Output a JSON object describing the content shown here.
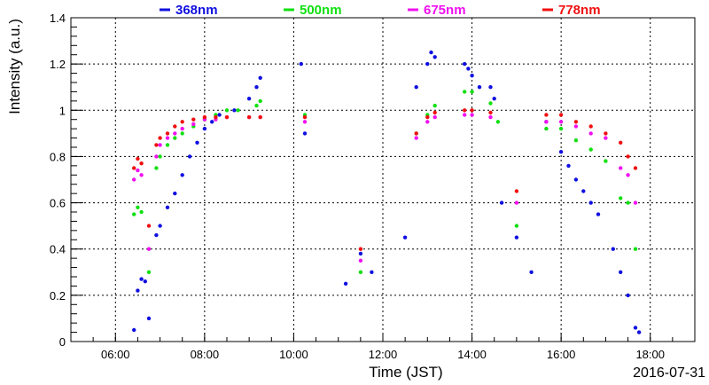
{
  "chart_data": {
    "type": "scatter",
    "title": "",
    "xlabel": "Time (JST)",
    "ylabel": "Intensity (a.u.)",
    "date": "2016-07-31",
    "xlim": [
      "05:00",
      "19:00"
    ],
    "ylim": [
      0,
      1.4
    ],
    "x_ticks": [
      "06:00",
      "08:00",
      "10:00",
      "12:00",
      "14:00",
      "16:00",
      "18:00"
    ],
    "y_ticks": [
      "0",
      "0.2",
      "0.4",
      "0.6",
      "0.8",
      "1",
      "1.2",
      "1.4"
    ],
    "grid": true,
    "legend_position": "top",
    "series": [
      {
        "name": "368nm",
        "color": "#1010e0",
        "points": [
          [
            "06:25",
            0.05
          ],
          [
            "06:30",
            0.22
          ],
          [
            "06:35",
            0.27
          ],
          [
            "06:40",
            0.26
          ],
          [
            "06:45",
            0.1
          ],
          [
            "06:55",
            0.46
          ],
          [
            "07:00",
            0.5
          ],
          [
            "07:10",
            0.58
          ],
          [
            "07:20",
            0.64
          ],
          [
            "07:30",
            0.72
          ],
          [
            "07:40",
            0.8
          ],
          [
            "07:50",
            0.86
          ],
          [
            "08:00",
            0.92
          ],
          [
            "08:10",
            0.95
          ],
          [
            "08:20",
            0.98
          ],
          [
            "08:40",
            1.0
          ],
          [
            "09:00",
            1.05
          ],
          [
            "09:10",
            1.1
          ],
          [
            "09:15",
            1.14
          ],
          [
            "10:10",
            1.2
          ],
          [
            "10:15",
            0.9
          ],
          [
            "11:10",
            0.25
          ],
          [
            "11:30",
            0.38
          ],
          [
            "11:45",
            0.3
          ],
          [
            "12:30",
            0.45
          ],
          [
            "12:45",
            1.1
          ],
          [
            "13:00",
            1.2
          ],
          [
            "13:05",
            1.25
          ],
          [
            "13:10",
            1.23
          ],
          [
            "13:50",
            1.2
          ],
          [
            "13:55",
            1.18
          ],
          [
            "14:00",
            1.15
          ],
          [
            "14:10",
            1.1
          ],
          [
            "14:25",
            1.1
          ],
          [
            "14:30",
            1.05
          ],
          [
            "14:40",
            0.6
          ],
          [
            "15:00",
            0.45
          ],
          [
            "15:20",
            0.3
          ],
          [
            "15:40",
            0.95
          ],
          [
            "16:00",
            0.82
          ],
          [
            "16:10",
            0.76
          ],
          [
            "16:20",
            0.7
          ],
          [
            "16:30",
            0.65
          ],
          [
            "16:40",
            0.6
          ],
          [
            "16:50",
            0.55
          ],
          [
            "17:10",
            0.4
          ],
          [
            "17:20",
            0.3
          ],
          [
            "17:30",
            0.2
          ],
          [
            "17:40",
            0.06
          ],
          [
            "17:45",
            0.04
          ]
        ]
      },
      {
        "name": "500nm",
        "color": "#10e010",
        "points": [
          [
            "06:25",
            0.55
          ],
          [
            "06:30",
            0.58
          ],
          [
            "06:35",
            0.56
          ],
          [
            "06:45",
            0.3
          ],
          [
            "06:55",
            0.75
          ],
          [
            "07:00",
            0.8
          ],
          [
            "07:10",
            0.85
          ],
          [
            "07:20",
            0.88
          ],
          [
            "07:30",
            0.9
          ],
          [
            "07:45",
            0.93
          ],
          [
            "08:00",
            0.96
          ],
          [
            "08:15",
            0.98
          ],
          [
            "08:30",
            1.0
          ],
          [
            "08:45",
            1.0
          ],
          [
            "09:10",
            1.02
          ],
          [
            "09:15",
            1.04
          ],
          [
            "10:15",
            0.98
          ],
          [
            "11:30",
            0.3
          ],
          [
            "12:45",
            0.9
          ],
          [
            "13:00",
            0.98
          ],
          [
            "13:10",
            1.02
          ],
          [
            "13:50",
            1.08
          ],
          [
            "14:00",
            1.08
          ],
          [
            "14:25",
            1.03
          ],
          [
            "14:35",
            0.95
          ],
          [
            "15:00",
            0.5
          ],
          [
            "15:40",
            0.92
          ],
          [
            "16:00",
            0.92
          ],
          [
            "16:20",
            0.87
          ],
          [
            "16:40",
            0.83
          ],
          [
            "17:00",
            0.78
          ],
          [
            "17:20",
            0.62
          ],
          [
            "17:30",
            0.6
          ],
          [
            "17:40",
            0.4
          ]
        ]
      },
      {
        "name": "675nm",
        "color": "#f010f0",
        "points": [
          [
            "06:25",
            0.7
          ],
          [
            "06:30",
            0.74
          ],
          [
            "06:35",
            0.72
          ],
          [
            "06:45",
            0.4
          ],
          [
            "06:55",
            0.8
          ],
          [
            "07:00",
            0.85
          ],
          [
            "07:10",
            0.88
          ],
          [
            "07:20",
            0.9
          ],
          [
            "07:30",
            0.92
          ],
          [
            "07:45",
            0.94
          ],
          [
            "08:00",
            0.96
          ],
          [
            "08:15",
            0.96
          ],
          [
            "08:30",
            0.97
          ],
          [
            "09:00",
            0.97
          ],
          [
            "09:15",
            0.97
          ],
          [
            "10:15",
            0.95
          ],
          [
            "11:30",
            0.35
          ],
          [
            "12:45",
            0.88
          ],
          [
            "13:00",
            0.95
          ],
          [
            "13:10",
            0.97
          ],
          [
            "13:50",
            0.98
          ],
          [
            "14:00",
            0.98
          ],
          [
            "14:25",
            0.97
          ],
          [
            "15:00",
            0.6
          ],
          [
            "15:40",
            0.95
          ],
          [
            "16:00",
            0.95
          ],
          [
            "16:20",
            0.93
          ],
          [
            "16:40",
            0.9
          ],
          [
            "17:00",
            0.88
          ],
          [
            "17:20",
            0.75
          ],
          [
            "17:30",
            0.72
          ],
          [
            "17:40",
            0.6
          ]
        ]
      },
      {
        "name": "778nm",
        "color": "#f01010",
        "points": [
          [
            "06:25",
            0.75
          ],
          [
            "06:30",
            0.79
          ],
          [
            "06:35",
            0.77
          ],
          [
            "06:45",
            0.5
          ],
          [
            "06:55",
            0.85
          ],
          [
            "07:00",
            0.88
          ],
          [
            "07:10",
            0.9
          ],
          [
            "07:20",
            0.93
          ],
          [
            "07:30",
            0.95
          ],
          [
            "07:45",
            0.96
          ],
          [
            "08:00",
            0.97
          ],
          [
            "08:15",
            0.97
          ],
          [
            "08:30",
            0.97
          ],
          [
            "09:00",
            0.97
          ],
          [
            "09:15",
            0.97
          ],
          [
            "10:15",
            0.97
          ],
          [
            "11:30",
            0.4
          ],
          [
            "12:45",
            0.9
          ],
          [
            "13:00",
            0.97
          ],
          [
            "13:10",
            0.99
          ],
          [
            "13:50",
            1.0
          ],
          [
            "14:00",
            1.0
          ],
          [
            "14:25",
            0.99
          ],
          [
            "15:00",
            0.65
          ],
          [
            "15:40",
            0.98
          ],
          [
            "16:00",
            0.98
          ],
          [
            "16:20",
            0.95
          ],
          [
            "16:40",
            0.93
          ],
          [
            "17:00",
            0.9
          ],
          [
            "17:20",
            0.86
          ],
          [
            "17:30",
            0.8
          ],
          [
            "17:40",
            0.75
          ]
        ]
      }
    ]
  }
}
